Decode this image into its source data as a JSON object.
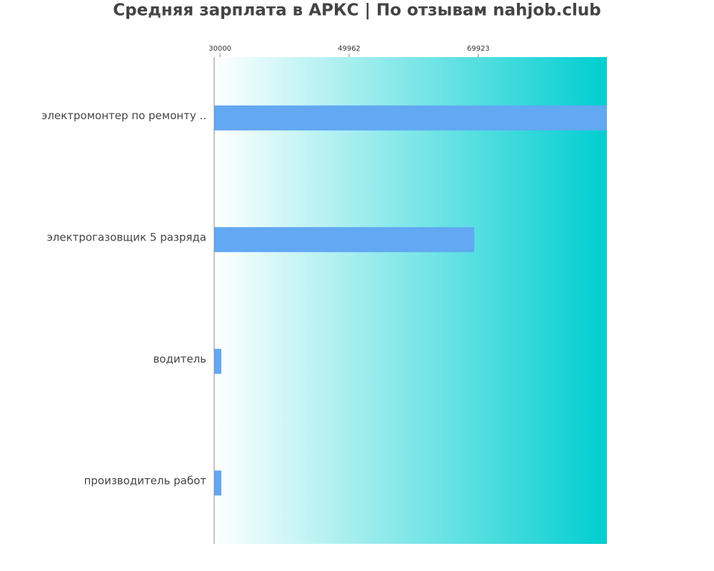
{
  "chart_data": {
    "type": "barh",
    "title": "Средняя зарплата в АРКС | По отзывам nahjob.club",
    "categories": [
      "электромонтер по ремонту ..",
      "электрогазовщик 5 разряда",
      "водитель",
      "производитель работ"
    ],
    "values": [
      89800,
      69300,
      30200,
      30200
    ],
    "color": "#62a8f2",
    "xlim": [
      29100,
      89800
    ],
    "xticks": [
      30000,
      49962,
      69923
    ],
    "background_gradient": [
      "#ffffff",
      "#00ced1"
    ]
  }
}
